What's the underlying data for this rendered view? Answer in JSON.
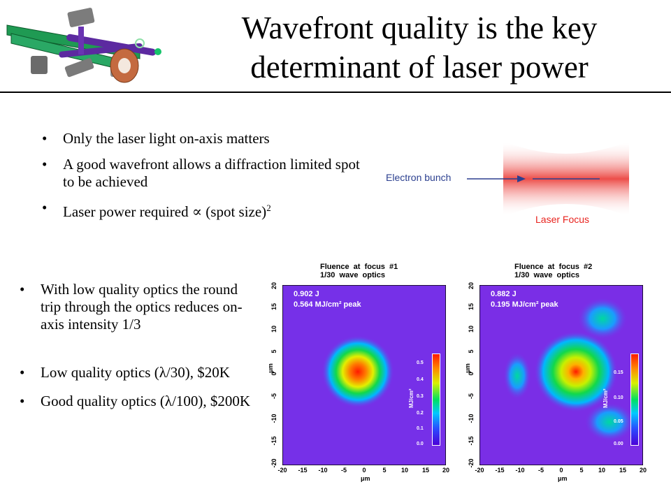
{
  "slide": {
    "title_line1": "Wavefront quality is the key",
    "title_line2": "determinant of laser power"
  },
  "top_bullets": [
    "Only the laser light on-axis matters",
    "A good wavefront allows a diffraction limited spot to be achieved",
    "Laser power required ∝ (spot size)"
  ],
  "top_bullet_superscript": "2",
  "bottom_bullets": [
    "With low quality optics the round trip through the optics reduces on-axis intensity 1/3",
    "Low quality optics (λ/30), $20K",
    "Good quality optics (λ/100), $200K"
  ],
  "focus_diagram": {
    "electron_label": "Electron bunch",
    "laser_label": "Laser Focus",
    "electron_color": "#2b3f8f",
    "laser_color": "#e8231e"
  },
  "plots": [
    {
      "title_line1": "Fluence  at  focus  #1",
      "title_line2": "1/30  wave  optics",
      "energy": "0.902  J",
      "peak": "0.564  MJ/cm²  peak",
      "colorbar_ticks": [
        "0.5",
        "0.4",
        "0.3",
        "0.2",
        "0.1",
        "0.0"
      ],
      "colorbar_unit": "MJ/cm²"
    },
    {
      "title_line1": "Fluence  at  focus  #2",
      "title_line2": "1/30  wave  optics",
      "energy": "0.882  J",
      "peak": "0.195  MJ/cm²  peak",
      "colorbar_ticks": [
        "0.15",
        "0.10",
        "0.05",
        "0.00"
      ],
      "colorbar_unit": "MJ/cm²"
    }
  ],
  "axes": {
    "ticks": [
      "-20",
      "-15",
      "-10",
      "-5",
      "0",
      "5",
      "10",
      "15",
      "20"
    ],
    "unit": "μm"
  },
  "colors": {
    "background": "#7a2ee6",
    "rule": "#000000"
  }
}
